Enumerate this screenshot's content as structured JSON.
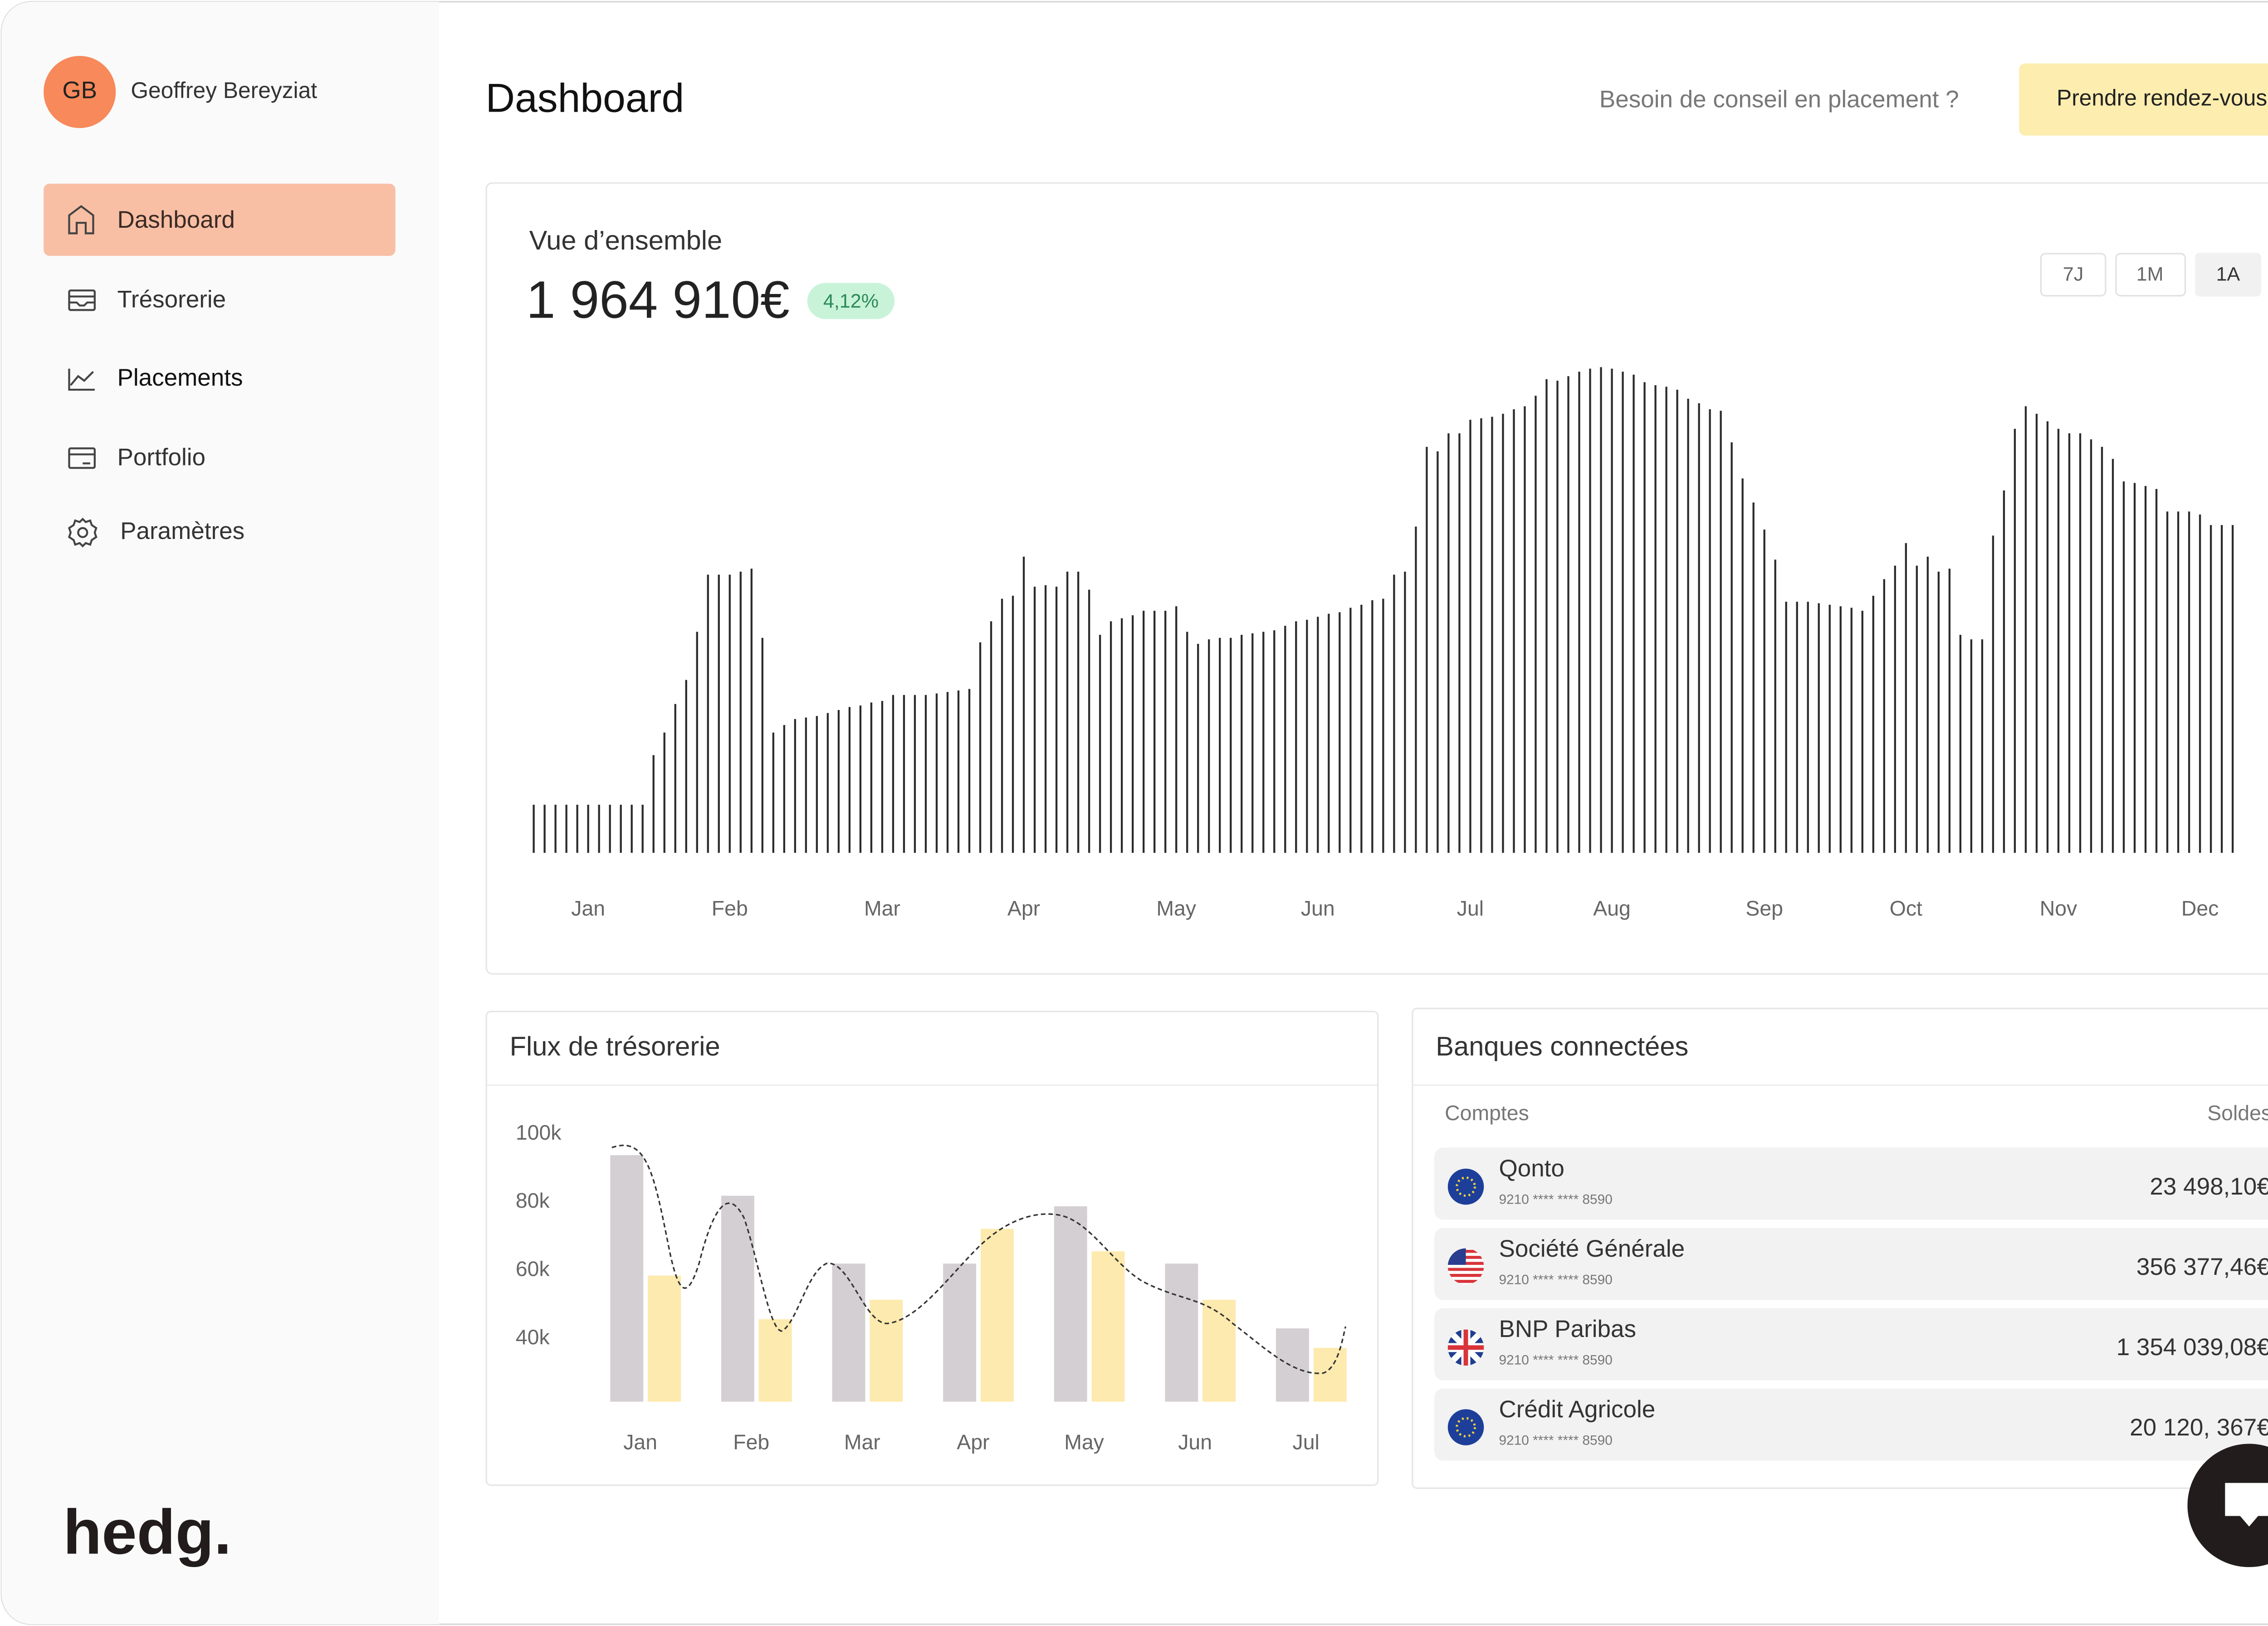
{
  "user": {
    "initials": "GB",
    "name": "Geoffrey Bereyziat"
  },
  "nav": [
    "Dashboard",
    "Trésorerie",
    "Placements",
    "Portfolio",
    "Paramètres"
  ],
  "logo": "hedg.",
  "header": {
    "title": "Dashboard",
    "prompt": "Besoin de conseil en placement ?",
    "button": "Prendre rendez-vous"
  },
  "overview": {
    "title": "Vue d’ensemble",
    "total": "1 964 910€",
    "change": "4,12%",
    "periods": [
      "7J",
      "1M",
      "1A"
    ]
  },
  "cashflow": {
    "title": "Flux de trésorerie"
  },
  "banks": {
    "title": "Banques connectées",
    "columns": [
      "Comptes",
      "Soldes"
    ],
    "accounts": [
      {
        "name": "Qonto",
        "number": "9210 **** **** 8590",
        "balance": "23 498,10€"
      },
      {
        "name": "Société Générale",
        "number": "9210 **** **** 8590",
        "balance": "356 377,46€"
      },
      {
        "name": "BNP Paribas",
        "number": "9210 **** **** 8590",
        "balance": "1 354 039,08€"
      },
      {
        "name": "Crédit Agricole",
        "number": "9210 **** **** 8590",
        "balance": "20 120, 367€"
      }
    ]
  },
  "chart_data": [
    {
      "type": "bar",
      "color": "#2b2b2b",
      "ylim": [
        0,
        330
      ],
      "categories": [
        null,
        null,
        null,
        null,
        null,
        "Jan",
        null,
        null,
        null,
        null,
        null,
        null,
        null,
        null,
        null,
        null,
        null,
        null,
        "Feb",
        null,
        null,
        null,
        null,
        null,
        null,
        null,
        null,
        null,
        null,
        null,
        null,
        null,
        "Mar",
        null,
        null,
        null,
        null,
        null,
        null,
        null,
        null,
        null,
        null,
        null,
        null,
        "Apr",
        null,
        null,
        null,
        null,
        null,
        null,
        null,
        null,
        null,
        null,
        null,
        null,
        null,
        "May",
        null,
        null,
        null,
        null,
        null,
        null,
        null,
        null,
        null,
        null,
        null,
        null,
        "Jun",
        null,
        null,
        null,
        null,
        null,
        null,
        null,
        null,
        null,
        null,
        null,
        null,
        null,
        "Jul",
        null,
        null,
        null,
        null,
        null,
        null,
        null,
        null,
        null,
        null,
        null,
        null,
        "Aug",
        null,
        null,
        null,
        null,
        null,
        null,
        null,
        null,
        null,
        null,
        null,
        null,
        null,
        "Sep",
        null,
        null,
        null,
        null,
        null,
        null,
        null,
        null,
        null,
        null,
        null,
        null,
        "Oct",
        null,
        null,
        null,
        null,
        null,
        null,
        null,
        null,
        null,
        null,
        null,
        null,
        null,
        "Nov",
        null,
        null,
        null,
        null,
        null,
        null,
        null,
        null,
        null,
        null,
        null,
        null,
        "Dec",
        null,
        null,
        null
      ],
      "values": [
        32,
        32,
        32,
        32,
        32,
        32,
        32,
        32,
        32,
        32,
        32,
        65,
        80,
        99,
        115,
        147,
        185,
        185,
        185,
        187,
        189,
        143,
        80,
        85,
        89,
        90,
        91,
        93,
        95,
        97,
        98,
        100,
        101,
        105,
        105,
        105,
        105,
        106,
        107,
        108,
        109,
        140,
        154,
        169,
        171,
        197,
        177,
        178,
        177,
        187,
        187,
        175,
        145,
        154,
        156,
        158,
        161,
        161,
        161,
        164,
        147,
        139,
        142,
        143,
        143,
        145,
        146,
        147,
        148,
        151,
        154,
        155,
        157,
        159,
        160,
        163,
        165,
        168,
        169,
        185,
        187,
        217,
        270,
        267,
        279,
        279,
        288,
        289,
        290,
        292,
        295,
        297,
        304,
        315,
        314,
        317,
        320,
        322,
        323,
        322,
        320,
        318,
        313,
        311,
        310,
        308,
        302,
        299,
        295,
        294,
        273,
        249,
        233,
        215,
        195,
        167,
        167,
        167,
        166,
        165,
        164,
        163,
        161,
        171,
        182,
        191,
        206,
        191,
        197,
        187,
        189,
        145,
        142,
        142,
        211,
        241,
        282,
        297,
        292,
        287,
        282,
        279,
        279,
        275,
        270,
        262,
        247,
        246,
        244,
        242,
        227,
        227,
        227,
        225,
        218,
        218,
        218
      ]
    },
    {
      "type": "bar",
      "categories": [
        "Jan",
        "Feb",
        "Mar",
        "Apr",
        "May",
        "Jun",
        "Jul"
      ],
      "series": [
        {
          "color": "#d4cfd3",
          "values": [
            93800,
            81900,
            62000,
            62000,
            78800,
            62000,
            43000
          ]
        },
        {
          "color": "#fdeaae",
          "values": [
            58500,
            45700,
            51400,
            72200,
            65600,
            51400,
            37300
          ]
        }
      ],
      "ylim": [
        21500,
        100000
      ],
      "yticks": [
        {
          "value": 100000,
          "label": "100k"
        },
        {
          "value": 80000,
          "label": "80k"
        },
        {
          "value": 60000,
          "label": "60k"
        },
        {
          "value": 40000,
          "label": "40k"
        }
      ]
    }
  ]
}
